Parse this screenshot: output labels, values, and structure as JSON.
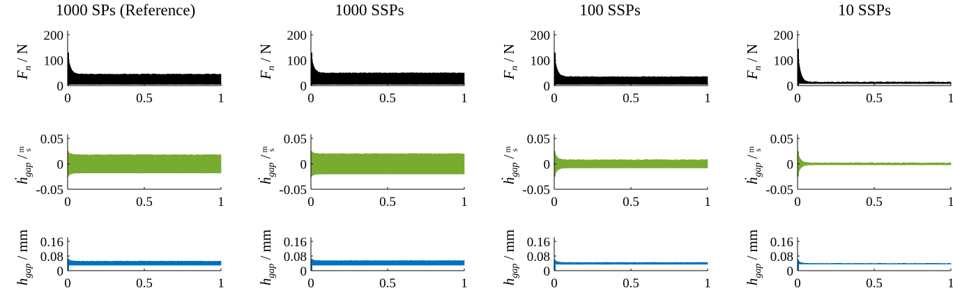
{
  "colors": {
    "Fn": "#000000",
    "hdot": "#77ac30",
    "h": "#0072bd"
  },
  "rows": [
    {
      "key": "Fn",
      "ylim": [
        0,
        200
      ],
      "yticks": [
        "0",
        "100",
        "200"
      ]
    },
    {
      "key": "hdot",
      "ylim": [
        -0.05,
        0.05
      ],
      "yticks": [
        "-0.05",
        "0",
        "0.05"
      ]
    },
    {
      "key": "h",
      "ylim": [
        0,
        0.16
      ],
      "yticks": [
        "0",
        "0.08",
        "0.16"
      ]
    }
  ],
  "y_label_parts": {
    "Fn": {
      "sym": "F",
      "sub": "n",
      "unit": "/ N"
    },
    "hdot": {
      "sym": "ḣ",
      "sub": "gap",
      "unit": "/",
      "frac_num": "m",
      "frac_den": "s"
    },
    "h": {
      "sym": "h",
      "sub": "gap",
      "unit": "/ mm"
    }
  },
  "xticks": [
    "0",
    "0.5",
    "1"
  ],
  "xlim": [
    0,
    1
  ],
  "chart_data": [
    {
      "type": "area",
      "title": "1000 SPs (Reference)",
      "xlim": [
        0,
        1
      ],
      "series": [
        {
          "row": "Fn",
          "peak_value": 130,
          "steady_upper": 45,
          "steady_lower": 5
        },
        {
          "row": "hdot",
          "peak_value": 0.025,
          "steady_upper": 0.018,
          "steady_lower": -0.018
        },
        {
          "row": "h",
          "peak_value": 0.065,
          "steady_upper": 0.052,
          "steady_lower": 0.03
        }
      ]
    },
    {
      "type": "area",
      "title": "1000 SSPs",
      "xlim": [
        0,
        1
      ],
      "series": [
        {
          "row": "Fn",
          "peak_value": 130,
          "steady_upper": 50,
          "steady_lower": 5
        },
        {
          "row": "hdot",
          "peak_value": 0.025,
          "steady_upper": 0.02,
          "steady_lower": -0.02
        },
        {
          "row": "h",
          "peak_value": 0.065,
          "steady_upper": 0.055,
          "steady_lower": 0.03
        }
      ]
    },
    {
      "type": "area",
      "title": "100 SSPs",
      "xlim": [
        0,
        1
      ],
      "series": [
        {
          "row": "Fn",
          "peak_value": 130,
          "steady_upper": 35,
          "steady_lower": 5
        },
        {
          "row": "hdot",
          "peak_value": 0.025,
          "steady_upper": 0.008,
          "steady_lower": -0.008
        },
        {
          "row": "h",
          "peak_value": 0.06,
          "steady_upper": 0.045,
          "steady_lower": 0.035
        }
      ]
    },
    {
      "type": "area",
      "title": "10 SSPs",
      "xlim": [
        0,
        1
      ],
      "series": [
        {
          "row": "Fn",
          "peak_value": 145,
          "steady_upper": 14,
          "steady_lower": 8
        },
        {
          "row": "hdot",
          "peak_value": 0.025,
          "steady_upper": 0.002,
          "steady_lower": -0.002
        },
        {
          "row": "h",
          "peak_value": 0.06,
          "steady_upper": 0.04,
          "steady_lower": 0.036
        }
      ]
    }
  ]
}
